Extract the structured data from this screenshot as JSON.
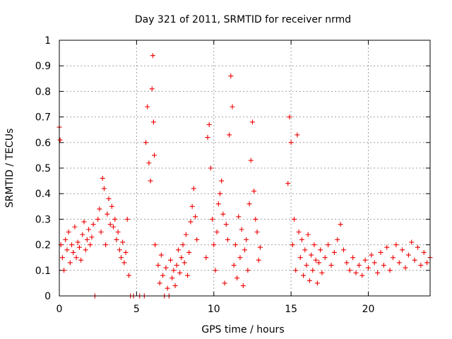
{
  "chart_data": {
    "type": "scatter",
    "title": "Day 321 of 2011, SRMTID for receiver nrmd",
    "xlabel": "GPS time / hours",
    "ylabel": "SRMTID / TECUs",
    "xlim": [
      0,
      24
    ],
    "ylim": [
      0,
      1
    ],
    "x_ticks": [
      0,
      5,
      10,
      15,
      20
    ],
    "y_ticks": [
      0,
      0.1,
      0.2,
      0.3,
      0.4,
      0.5,
      0.6,
      0.7,
      0.8,
      0.9,
      1
    ],
    "x_tick_labels": [
      "0",
      "5",
      "10",
      "15",
      "20"
    ],
    "y_tick_labels": [
      "0",
      "0.1",
      "0.2",
      "0.3",
      "0.4",
      "0.5",
      "0.6",
      "0.7",
      "0.8",
      "0.9",
      "1"
    ],
    "grid": true,
    "marker": "plus",
    "color": "#ee0000",
    "series": [
      {
        "points": [
          [
            0.0,
            0.66
          ],
          [
            0.05,
            0.61
          ],
          [
            0.1,
            0.2
          ],
          [
            0.2,
            0.15
          ],
          [
            0.3,
            0.1
          ],
          [
            0.4,
            0.22
          ],
          [
            0.5,
            0.18
          ],
          [
            0.6,
            0.25
          ],
          [
            0.7,
            0.13
          ],
          [
            0.8,
            0.2
          ],
          [
            0.9,
            0.17
          ],
          [
            1.0,
            0.27
          ],
          [
            1.1,
            0.15
          ],
          [
            1.2,
            0.21
          ],
          [
            1.3,
            0.19
          ],
          [
            1.4,
            0.14
          ],
          [
            1.5,
            0.24
          ],
          [
            1.6,
            0.29
          ],
          [
            1.7,
            0.18
          ],
          [
            1.8,
            0.22
          ],
          [
            1.9,
            0.26
          ],
          [
            2.0,
            0.2
          ],
          [
            2.1,
            0.23
          ],
          [
            2.2,
            0.28
          ],
          [
            2.3,
            0.0
          ],
          [
            2.5,
            0.3
          ],
          [
            2.6,
            0.34
          ],
          [
            2.7,
            0.25
          ],
          [
            2.8,
            0.46
          ],
          [
            2.9,
            0.42
          ],
          [
            3.0,
            0.2
          ],
          [
            3.1,
            0.32
          ],
          [
            3.2,
            0.38
          ],
          [
            3.3,
            0.28
          ],
          [
            3.4,
            0.35
          ],
          [
            3.5,
            0.27
          ],
          [
            3.6,
            0.3
          ],
          [
            3.7,
            0.22
          ],
          [
            3.8,
            0.25
          ],
          [
            3.9,
            0.18
          ],
          [
            4.0,
            0.15
          ],
          [
            4.1,
            0.21
          ],
          [
            4.2,
            0.13
          ],
          [
            4.3,
            0.17
          ],
          [
            4.4,
            0.3
          ],
          [
            4.5,
            0.08
          ],
          [
            4.6,
            0.0
          ],
          [
            4.8,
            0.0
          ],
          [
            5.2,
            0.0
          ],
          [
            5.5,
            0.0
          ],
          [
            5.6,
            0.6
          ],
          [
            5.7,
            0.74
          ],
          [
            5.8,
            0.52
          ],
          [
            5.9,
            0.45
          ],
          [
            6.0,
            0.81
          ],
          [
            6.05,
            0.94
          ],
          [
            6.1,
            0.68
          ],
          [
            6.15,
            0.55
          ],
          [
            6.2,
            0.2
          ],
          [
            6.4,
            0.12
          ],
          [
            6.5,
            0.05
          ],
          [
            6.6,
            0.16
          ],
          [
            6.7,
            0.08
          ],
          [
            6.8,
            0.0
          ],
          [
            6.9,
            0.11
          ],
          [
            7.0,
            0.03
          ],
          [
            7.1,
            0.0
          ],
          [
            7.2,
            0.14
          ],
          [
            7.3,
            0.07
          ],
          [
            7.4,
            0.1
          ],
          [
            7.5,
            0.04
          ],
          [
            7.6,
            0.12
          ],
          [
            7.7,
            0.18
          ],
          [
            7.8,
            0.09
          ],
          [
            7.9,
            0.15
          ],
          [
            8.0,
            0.2
          ],
          [
            8.1,
            0.13
          ],
          [
            8.2,
            0.24
          ],
          [
            8.3,
            0.08
          ],
          [
            8.4,
            0.17
          ],
          [
            8.5,
            0.29
          ],
          [
            8.6,
            0.35
          ],
          [
            8.7,
            0.42
          ],
          [
            8.8,
            0.31
          ],
          [
            8.9,
            0.22
          ],
          [
            9.5,
            0.15
          ],
          [
            9.6,
            0.62
          ],
          [
            9.7,
            0.67
          ],
          [
            9.8,
            0.5
          ],
          [
            9.9,
            0.3
          ],
          [
            10.0,
            0.2
          ],
          [
            10.1,
            0.1
          ],
          [
            10.2,
            0.25
          ],
          [
            10.3,
            0.36
          ],
          [
            10.4,
            0.4
          ],
          [
            10.5,
            0.45
          ],
          [
            10.6,
            0.32
          ],
          [
            10.7,
            0.05
          ],
          [
            10.8,
            0.28
          ],
          [
            10.9,
            0.22
          ],
          [
            11.0,
            0.63
          ],
          [
            11.1,
            0.86
          ],
          [
            11.2,
            0.74
          ],
          [
            11.3,
            0.12
          ],
          [
            11.4,
            0.2
          ],
          [
            11.5,
            0.07
          ],
          [
            11.6,
            0.31
          ],
          [
            11.7,
            0.15
          ],
          [
            11.8,
            0.26
          ],
          [
            11.9,
            0.04
          ],
          [
            12.0,
            0.18
          ],
          [
            12.1,
            0.22
          ],
          [
            12.2,
            0.1
          ],
          [
            12.3,
            0.36
          ],
          [
            12.4,
            0.53
          ],
          [
            12.5,
            0.68
          ],
          [
            12.6,
            0.41
          ],
          [
            12.7,
            0.3
          ],
          [
            12.8,
            0.25
          ],
          [
            12.9,
            0.14
          ],
          [
            13.0,
            0.19
          ],
          [
            14.8,
            0.44
          ],
          [
            14.9,
            0.7
          ],
          [
            15.0,
            0.6
          ],
          [
            15.1,
            0.2
          ],
          [
            15.2,
            0.3
          ],
          [
            15.3,
            0.1
          ],
          [
            15.4,
            0.63
          ],
          [
            15.5,
            0.25
          ],
          [
            15.6,
            0.15
          ],
          [
            15.7,
            0.22
          ],
          [
            15.8,
            0.08
          ],
          [
            15.9,
            0.18
          ],
          [
            16.0,
            0.12
          ],
          [
            16.1,
            0.24
          ],
          [
            16.2,
            0.06
          ],
          [
            16.3,
            0.16
          ],
          [
            16.4,
            0.1
          ],
          [
            16.5,
            0.2
          ],
          [
            16.6,
            0.14
          ],
          [
            16.7,
            0.05
          ],
          [
            16.8,
            0.13
          ],
          [
            16.9,
            0.18
          ],
          [
            17.0,
            0.09
          ],
          [
            17.2,
            0.15
          ],
          [
            17.4,
            0.2
          ],
          [
            17.6,
            0.12
          ],
          [
            17.8,
            0.17
          ],
          [
            18.0,
            0.22
          ],
          [
            18.2,
            0.28
          ],
          [
            18.4,
            0.18
          ],
          [
            18.6,
            0.13
          ],
          [
            18.8,
            0.1
          ],
          [
            19.0,
            0.15
          ],
          [
            19.2,
            0.09
          ],
          [
            19.4,
            0.12
          ],
          [
            19.6,
            0.08
          ],
          [
            19.8,
            0.14
          ],
          [
            20.0,
            0.11
          ],
          [
            20.2,
            0.16
          ],
          [
            20.4,
            0.13
          ],
          [
            20.6,
            0.09
          ],
          [
            20.8,
            0.17
          ],
          [
            21.0,
            0.12
          ],
          [
            21.2,
            0.19
          ],
          [
            21.4,
            0.1
          ],
          [
            21.6,
            0.15
          ],
          [
            21.8,
            0.2
          ],
          [
            22.0,
            0.13
          ],
          [
            22.2,
            0.18
          ],
          [
            22.4,
            0.11
          ],
          [
            22.6,
            0.16
          ],
          [
            22.8,
            0.21
          ],
          [
            23.0,
            0.14
          ],
          [
            23.2,
            0.19
          ],
          [
            23.4,
            0.12
          ],
          [
            23.6,
            0.17
          ],
          [
            23.8,
            0.13
          ],
          [
            24.0,
            0.15
          ]
        ]
      }
    ]
  }
}
